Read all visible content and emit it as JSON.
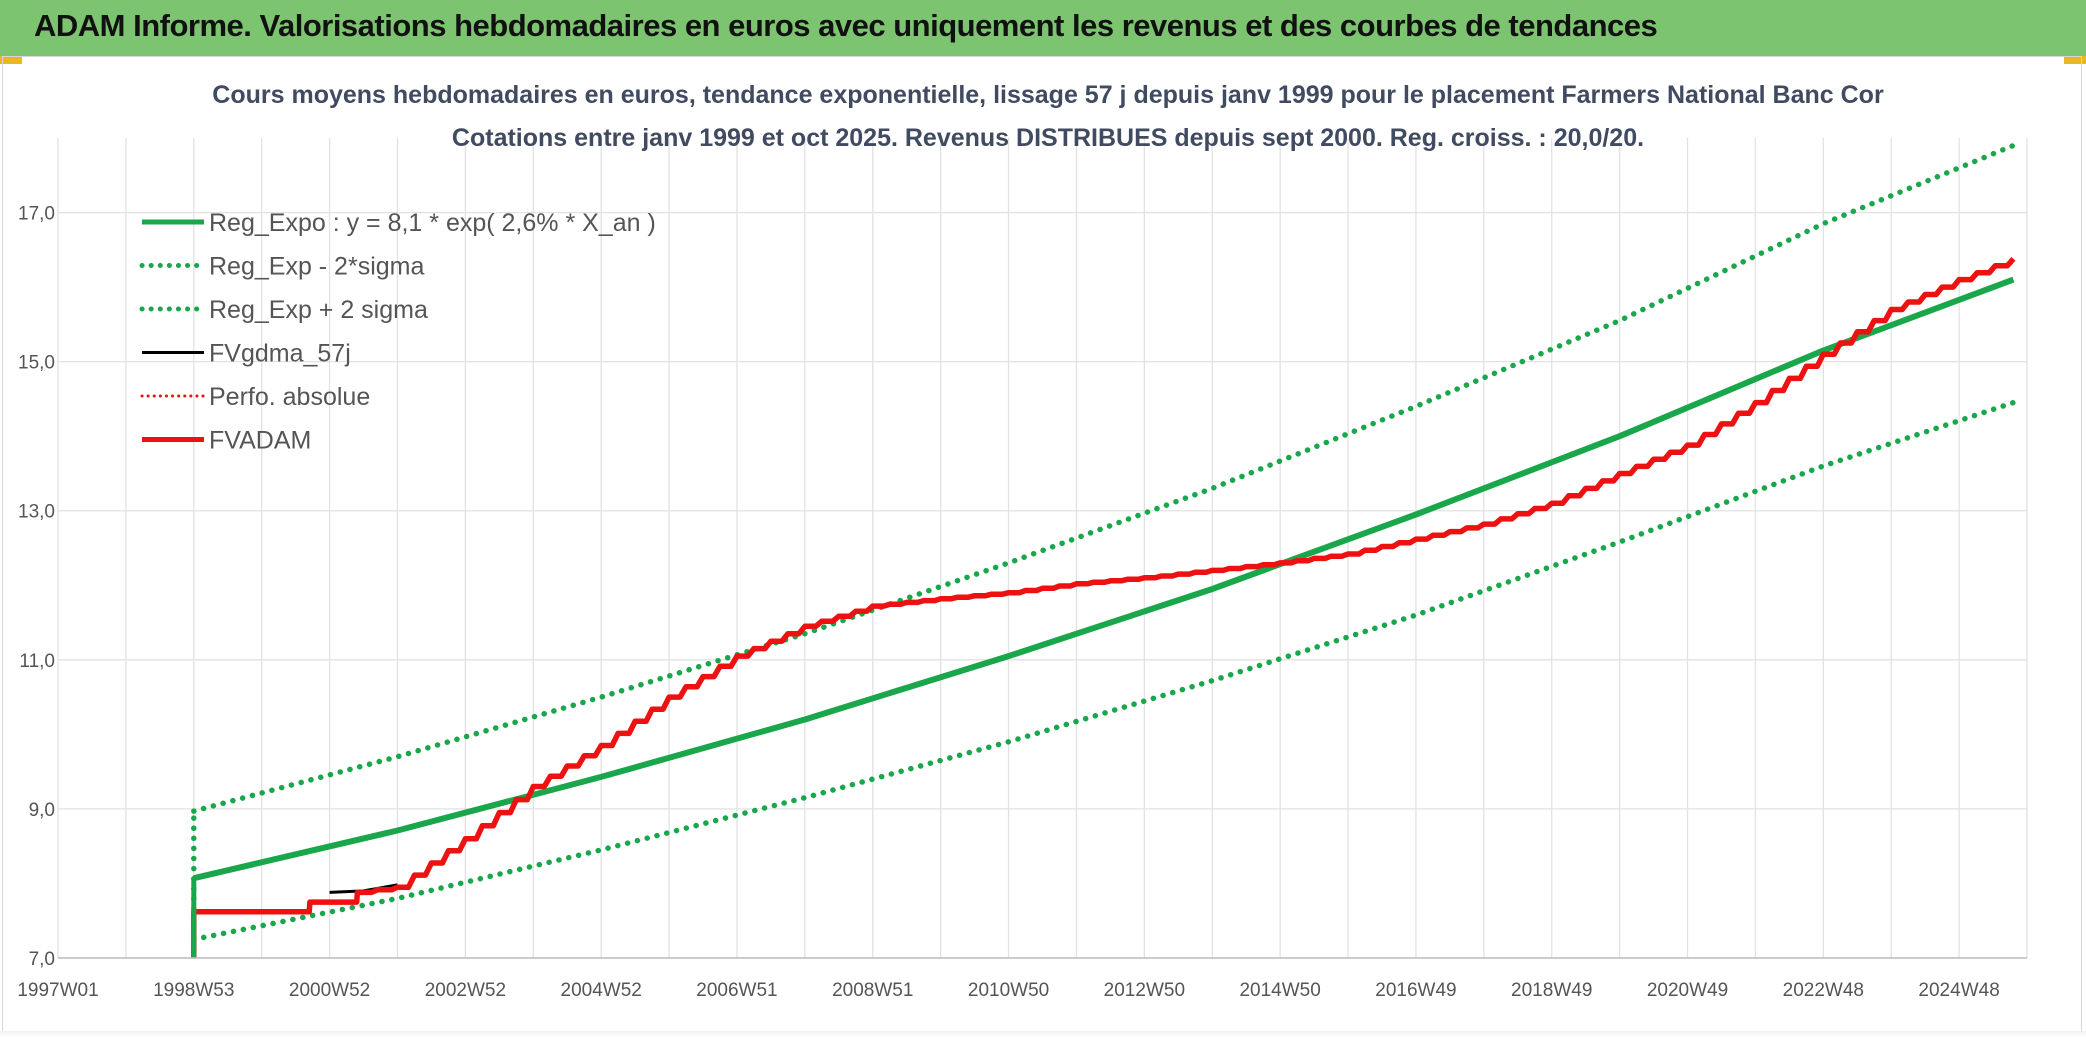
{
  "banner": {
    "title": "ADAM Informe. Valorisations hebdomadaires en euros avec uniquement les revenus et des courbes de tendances"
  },
  "colors": {
    "banner_bg": "#7dc470",
    "trend_green": "#1aa64b",
    "perf_red": "#ee1111",
    "fv_black": "#000000",
    "grid": "#e2e2e2",
    "title_text": "#404a60"
  },
  "chart_data": {
    "type": "line",
    "title": "Cours moyens hebdomadaires en euros, tendance exponentielle, lissage 57 j depuis janv 1999 pour le placement Farmers National Banc Cor",
    "subtitle": "Cotations entre janv 1999 et oct 2025. Revenus DISTRIBUES depuis sept 2000. Reg. croiss. : 20,0/20.",
    "x_tick_labels": [
      "1997W01",
      "1998W53",
      "2000W52",
      "2002W52",
      "2004W52",
      "2006W51",
      "2008W51",
      "2010W50",
      "2012W50",
      "2014W50",
      "2016W49",
      "2018W49",
      "2020W49",
      "2022W48",
      "2024W48"
    ],
    "x_range_years": [
      1997.0,
      2026.0
    ],
    "y_ticks": [
      "7,0",
      "9,0",
      "11,0",
      "13,0",
      "15,0",
      "17,0"
    ],
    "ylim": [
      7.0,
      18.0
    ],
    "grid": true,
    "legend_position": "top-left",
    "series": [
      {
        "name": "Reg_Expo : y = 8,1 * exp( 2,6% *  X_an )",
        "style": "solid-thick",
        "color": "#1aa64b",
        "x": [
          1999.0,
          2002.0,
          2005.0,
          2008.0,
          2011.0,
          2014.0,
          2017.0,
          2020.0,
          2023.0,
          2025.8
        ],
        "y": [
          8.07,
          8.71,
          9.43,
          10.2,
          11.05,
          11.95,
          12.95,
          14.0,
          15.15,
          16.1
        ]
      },
      {
        "name": "Reg_Exp - 2*sigma",
        "style": "dotted",
        "color": "#1aa64b",
        "x": [
          1999.0,
          2002.0,
          2005.0,
          2008.0,
          2011.0,
          2014.0,
          2017.0,
          2020.0,
          2023.0,
          2025.8
        ],
        "y": [
          7.25,
          7.8,
          8.45,
          9.15,
          9.9,
          10.72,
          11.6,
          12.58,
          13.6,
          14.45
        ]
      },
      {
        "name": "Reg_Exp + 2 sigma",
        "style": "dotted",
        "color": "#1aa64b",
        "x": [
          1999.0,
          2002.0,
          2005.0,
          2008.0,
          2011.0,
          2014.0,
          2017.0,
          2020.0,
          2023.0,
          2025.8
        ],
        "y": [
          8.97,
          9.7,
          10.5,
          11.35,
          12.3,
          13.3,
          14.4,
          15.55,
          16.85,
          17.9
        ]
      },
      {
        "name": "FVgdma_57j",
        "style": "solid",
        "color": "#000000",
        "x": [
          2001.0,
          2001.5,
          2002.0
        ],
        "y": [
          7.88,
          7.9,
          7.98
        ]
      },
      {
        "name": "Perfo. absolue",
        "style": "dotted-red",
        "color": "#ee1111",
        "x": [],
        "y": []
      },
      {
        "name": "FVADAM",
        "style": "solid-thick-stepped",
        "color": "#ee1111",
        "x": [
          1999.0,
          1999.0,
          1999.01,
          2000.7,
          2000.71,
          2001.4,
          2001.41,
          2002.0,
          2003.0,
          2004.0,
          2005.0,
          2006.0,
          2007.0,
          2008.0,
          2009.0,
          2010.0,
          2011.0,
          2012.0,
          2013.0,
          2014.0,
          2015.0,
          2016.0,
          2017.0,
          2018.0,
          2019.0,
          2020.0,
          2021.0,
          2022.0,
          2023.0,
          2024.0,
          2025.0,
          2025.8
        ],
        "y": [
          7.0,
          7.62,
          7.62,
          7.62,
          7.75,
          7.75,
          7.88,
          7.95,
          8.6,
          9.3,
          9.85,
          10.5,
          11.05,
          11.45,
          11.72,
          11.82,
          11.9,
          12.02,
          12.1,
          12.2,
          12.3,
          12.42,
          12.62,
          12.82,
          13.1,
          13.5,
          13.88,
          14.45,
          15.1,
          15.7,
          16.1,
          16.38
        ]
      }
    ]
  }
}
